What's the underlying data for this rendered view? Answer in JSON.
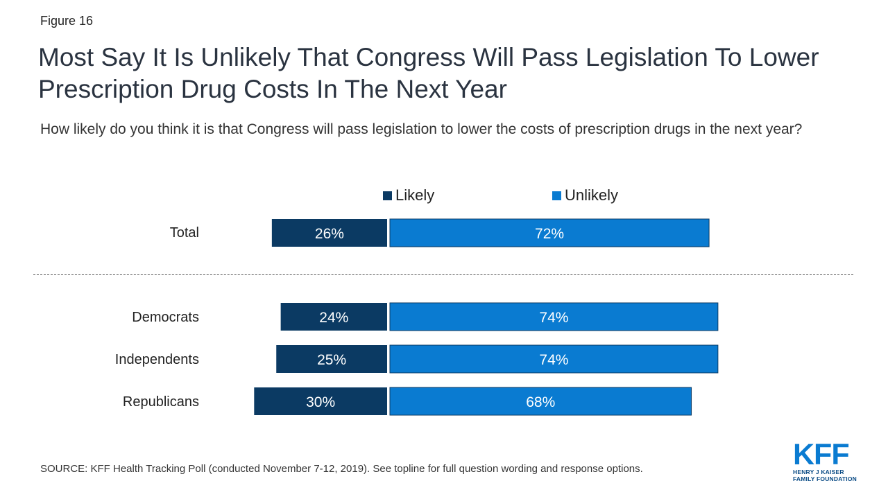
{
  "figure_label": "Figure 16",
  "title": "Most Say It Is Unlikely That Congress Will Pass Legislation To Lower Prescription Drug Costs In The Next Year",
  "subtitle": "How likely do you think it is that Congress will pass legislation to lower the costs of prescription drugs in the next year?",
  "source": "SOURCE: KFF Health Tracking Poll (conducted November 7-12, 2019). See topline for full question wording and response options.",
  "logo": {
    "mark": "KFF",
    "line1": "HENRY J KAISER",
    "line2": "FAMILY FOUNDATION"
  },
  "colors": {
    "likely": "#0b3a63",
    "unlikely": "#0a7bd1"
  },
  "chart_data": {
    "type": "bar",
    "orientation": "horizontal-diverging",
    "categories": [
      "Total",
      "Democrats",
      "Independents",
      "Republicans"
    ],
    "series": [
      {
        "name": "Likely",
        "values": [
          26,
          24,
          25,
          30
        ],
        "labels": [
          "26%",
          "24%",
          "25%",
          "30%"
        ]
      },
      {
        "name": "Unlikely",
        "values": [
          72,
          74,
          74,
          68
        ],
        "labels": [
          "72%",
          "74%",
          "74%",
          "68%"
        ]
      }
    ],
    "legend_position": "top"
  }
}
